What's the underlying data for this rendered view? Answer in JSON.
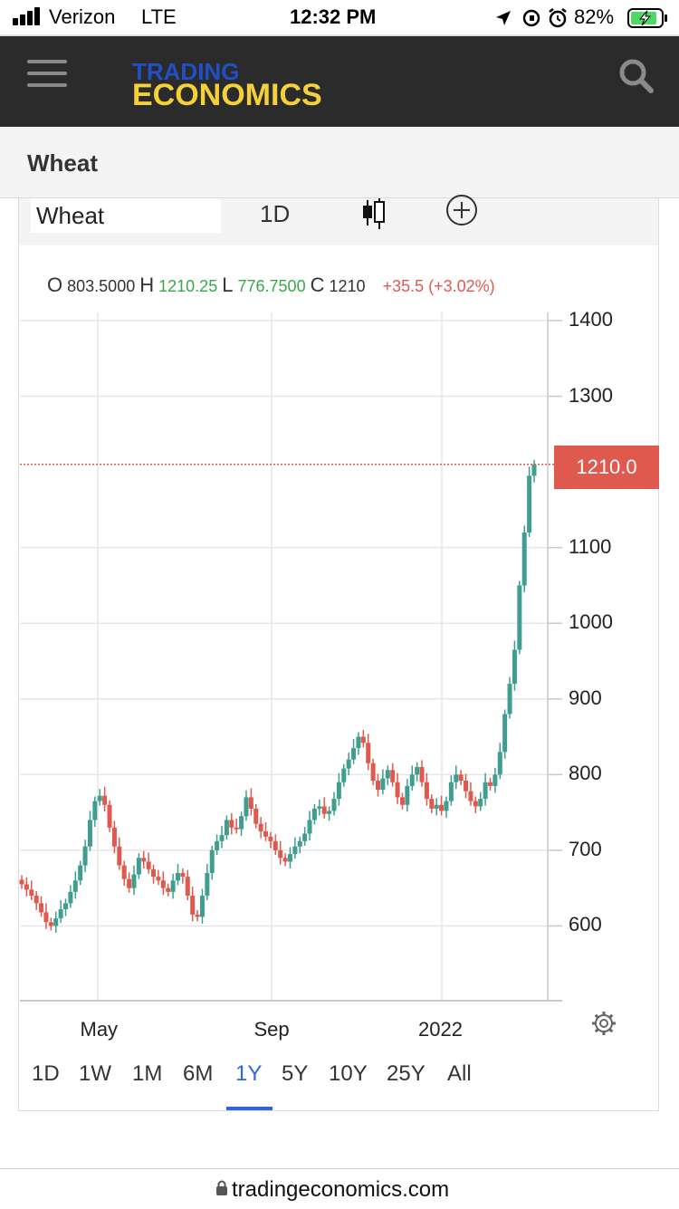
{
  "status_bar": {
    "carrier": "Verizon",
    "network": "LTE",
    "time": "12:32 PM",
    "battery": "82%",
    "icons": [
      "signal-icon",
      "location-icon",
      "screen-rotation-icon",
      "alarm-icon",
      "battery-charging-icon"
    ]
  },
  "header": {
    "logo_top": "TRADING",
    "logo_bottom": "ECONOMICS",
    "menu_icon": "hamburger-icon",
    "search_icon": "search-icon"
  },
  "page": {
    "title": "Wheat"
  },
  "toolbar": {
    "symbol": "Wheat",
    "interval": "1D",
    "chart_type_icon": "candlestick-icon",
    "compare_icon": "plus-circle-icon"
  },
  "ohlc": {
    "o_label": "O",
    "o_value": "803.5000",
    "h_label": "H",
    "h_value": "1210.25",
    "l_label": "L",
    "l_value": "776.7500",
    "c_label": "C",
    "c_value": "1210",
    "change": "+35.5",
    "change_pct": "(+3.02%)"
  },
  "price_tag": "1210.0",
  "ranges": [
    "1D",
    "1W",
    "1M",
    "6M",
    "1Y",
    "5Y",
    "10Y",
    "25Y",
    "All"
  ],
  "active_range": "1Y",
  "footer": {
    "url": "tradingeconomics.com",
    "lock_icon": "lock-icon"
  },
  "colors": {
    "up": "#3f9e8f",
    "down": "#e0594f",
    "accent": "#3465d8",
    "header_bg": "#2b2b2b"
  },
  "chart_data": {
    "type": "candlestick",
    "title": "",
    "xlabel": "",
    "ylabel": "",
    "y_ticks": [
      "1400",
      "1300",
      "1100",
      "1000",
      "900",
      "800",
      "700",
      "600"
    ],
    "x_ticks": [
      "May",
      "Sep",
      "2022"
    ],
    "ylim": [
      500,
      1400
    ],
    "last_price": 1210,
    "grid": true,
    "series": [
      {
        "values": [
          655,
          648,
          640,
          630,
          618,
          605,
          600,
          610,
          622,
          630,
          645,
          660,
          680,
          705,
          740,
          765,
          772,
          760,
          730,
          705,
          680,
          662,
          650,
          668,
          690,
          685,
          675,
          665,
          660,
          650,
          645,
          660,
          670,
          665,
          640,
          615,
          612,
          640,
          670,
          700,
          712,
          720,
          740,
          730,
          728,
          745,
          770,
          755,
          735,
          725,
          718,
          712,
          700,
          690,
          685,
          695,
          705,
          712,
          722,
          740,
          755,
          758,
          748,
          752,
          768,
          790,
          808,
          820,
          835,
          850,
          842,
          815,
          792,
          780,
          795,
          806,
          790,
          770,
          760,
          785,
          800,
          810,
          790,
          768,
          755,
          760,
          752,
          765,
          790,
          800,
          792,
          778,
          765,
          758,
          768,
          790,
          785,
          800,
          830,
          880,
          920,
          965,
          1050,
          1120,
          1195,
          1210
        ]
      }
    ]
  }
}
